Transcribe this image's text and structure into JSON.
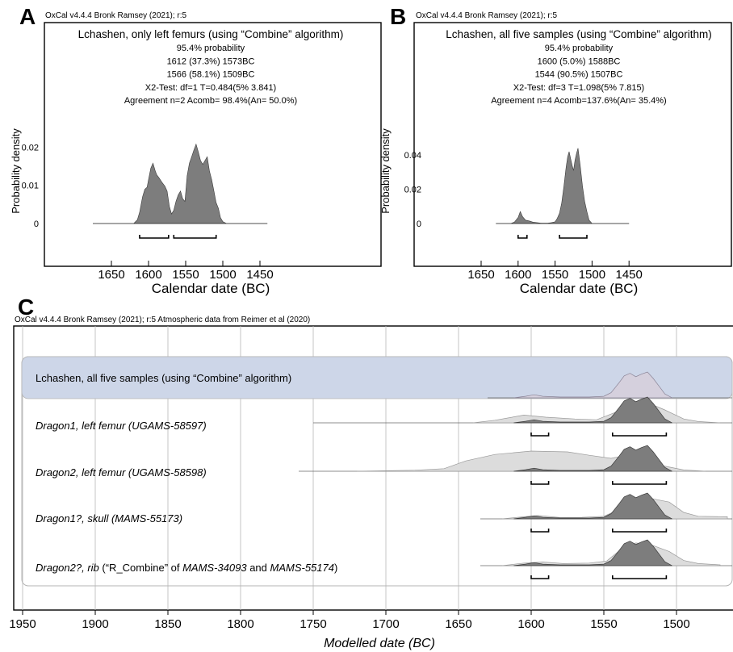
{
  "chart_data": [
    {
      "type": "area",
      "panel": "A",
      "header": "OxCal v4.4.4 Bronk Ramsey (2021); r:5",
      "title": "Lchashen, only left femurs (using “Combine” algorithm)",
      "stats": [
        "95.4% probability",
        "1612 (37.3%) 1573BC",
        "1566 (58.1%) 1509BC",
        "X2-Test: df=1 T=0.484(5% 3.841)",
        "Agreement n=2 Acomb= 98.4%(An= 50.0%)"
      ],
      "xlabel": "Calendar date (BC)",
      "ylabel": "Probability density",
      "x_ticks": [
        "1650",
        "1600",
        "1550",
        "1500",
        "1450"
      ],
      "y_ticks": [
        "0",
        "0.01",
        "0.02"
      ],
      "xlim": [
        1690,
        1420
      ],
      "ylim": [
        0,
        0.022
      ],
      "series": [
        {
          "x": [
            1675,
            1620,
            1615,
            1612,
            1608,
            1605,
            1602,
            1600,
            1597,
            1594,
            1591,
            1589,
            1586,
            1582,
            1578,
            1575,
            1572,
            1569,
            1566,
            1563,
            1560,
            1557,
            1554,
            1551,
            1548,
            1545,
            1542,
            1539,
            1536,
            1533,
            1530,
            1527,
            1524,
            1521,
            1518,
            1515,
            1512,
            1509,
            1506,
            1503,
            1500,
            1495,
            1440
          ],
          "y": [
            0,
            0,
            0.001,
            0.003,
            0.007,
            0.009,
            0.0095,
            0.0115,
            0.0145,
            0.0158,
            0.0138,
            0.0128,
            0.012,
            0.0108,
            0.0098,
            0.0085,
            0.0045,
            0.0025,
            0.0035,
            0.0058,
            0.0075,
            0.0085,
            0.0065,
            0.0058,
            0.0125,
            0.0158,
            0.0175,
            0.0192,
            0.0208,
            0.0188,
            0.0165,
            0.0155,
            0.0165,
            0.0175,
            0.0138,
            0.0115,
            0.0085,
            0.0055,
            0.004,
            0.0015,
            0.0005,
            0,
            0
          ]
        }
      ],
      "ranges_95": [
        [
          1612,
          1573
        ],
        [
          1566,
          1509
        ]
      ]
    },
    {
      "type": "area",
      "panel": "B",
      "header": "OxCal v4.4.4 Bronk Ramsey (2021); r:5",
      "title": "Lchashen, all five samples (using “Combine” algorithm)",
      "stats": [
        "95.4% probability",
        "1600 (5.0%) 1588BC",
        "1544 (90.5%) 1507BC",
        "X2-Test: df=3 T=1.098(5% 7.815)",
        "Agreement n=4 Acomb=137.6%(An= 35.4%)"
      ],
      "xlabel": "Calendar date (BC)",
      "ylabel": "Probability density",
      "x_ticks": [
        "1650",
        "1600",
        "1550",
        "1500",
        "1450"
      ],
      "y_ticks": [
        "0",
        "0.02",
        "0.04"
      ],
      "xlim": [
        1690,
        1420
      ],
      "ylim": [
        0,
        0.05
      ],
      "series": [
        {
          "x": [
            1630,
            1610,
            1605,
            1600,
            1597,
            1594,
            1590,
            1585,
            1580,
            1570,
            1560,
            1555,
            1550,
            1547,
            1544,
            1541,
            1538,
            1535,
            1533,
            1531,
            1529,
            1527,
            1525,
            1523,
            1521,
            1519,
            1516,
            1513,
            1510,
            1507,
            1504,
            1500,
            1450
          ],
          "y": [
            0,
            0,
            0.0008,
            0.0035,
            0.007,
            0.004,
            0.002,
            0.0015,
            0.0008,
            0.0003,
            0.0002,
            0.0005,
            0.001,
            0.003,
            0.006,
            0.012,
            0.022,
            0.033,
            0.039,
            0.042,
            0.038,
            0.034,
            0.031,
            0.037,
            0.041,
            0.044,
            0.034,
            0.022,
            0.013,
            0.007,
            0.002,
            0,
            0
          ]
        }
      ],
      "ranges_95": [
        [
          1600,
          1588
        ],
        [
          1544,
          1507
        ]
      ]
    },
    {
      "type": "area",
      "panel": "C",
      "header": "OxCal v4.4.4 Bronk Ramsey (2021); r:5 Atmospheric data from Reimer et al (2020)",
      "xlabel": "Modelled date (BC)",
      "x_ticks": [
        "1950",
        "1900",
        "1850",
        "1800",
        "1750",
        "1700",
        "1650",
        "1600",
        "1550",
        "1500"
      ],
      "xlim": [
        1960,
        1462
      ],
      "rows": [
        {
          "label": "Lchashen, all five samples (using “Combine” algorithm)"
        },
        {
          "label_italic": "Dragon1, left femur (UGAMS-58597)",
          "ranges_95": [
            [
              1600,
              1588
            ],
            [
              1544,
              1507
            ]
          ]
        },
        {
          "label_italic": "Dragon2, left femur (UGAMS-58598)",
          "ranges_95": [
            [
              1600,
              1588
            ],
            [
              1544,
              1507
            ]
          ]
        },
        {
          "label_italic": "Dragon1?, skull (MAMS-55173)",
          "ranges_95": [
            [
              1600,
              1588
            ],
            [
              1544,
              1507
            ]
          ]
        },
        {
          "label_italic": "Dragon2?, rib",
          "label_plain": " (“R_Combine” of ",
          "label_italic2": "MAMS-34093",
          "label_plain2": " and ",
          "label_italic3": "MAMS-55174",
          "label_plain3": ")",
          "ranges_95": [
            [
              1600,
              1588
            ],
            [
              1544,
              1507
            ]
          ]
        }
      ]
    }
  ],
  "colors": {
    "density_fill": "#7d7d7d",
    "prior_fill": "#dcdcdc",
    "highlight_band": "#cdd6e8",
    "highlight_density": "#d5d0dd",
    "grid": "#b8b8b8"
  }
}
